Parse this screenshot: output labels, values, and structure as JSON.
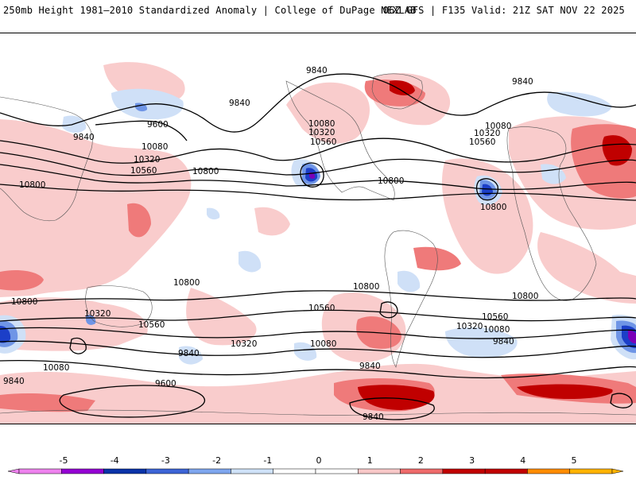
{
  "header": {
    "title": "250mb Height 1981–2010 Standardized Anomaly | College of DuPage NEXLAB",
    "run_info": "06Z GFS | F135 Valid: 21Z SAT NOV 22 2025"
  },
  "colors": {
    "pos1": "#f9cccc",
    "pos2": "#ef7a7a",
    "pos3": "#c00000",
    "neg1": "#cfe0f7",
    "neg2": "#6f95e6",
    "neg3": "#1c3fc8",
    "neg4": "#7a00b8",
    "neg5": "#e080ff"
  },
  "legend": {
    "ticks": [
      "-5",
      "-4",
      "-3",
      "-2",
      "-1",
      "0",
      "1",
      "2",
      "3",
      "4",
      "5"
    ],
    "bins": [
      "#ee82ee",
      "#9400d3",
      "#0a33a8",
      "#3c64d6",
      "#7ea6ee",
      "#cfe2f8",
      "#ffffff",
      "#ffffff",
      "#f8c8c8",
      "#ee6b6b",
      "#c00000",
      "#c00000",
      "#ff8c00",
      "#ffb300"
    ]
  },
  "contour_labels": [
    {
      "id": "c9840-north-pacific",
      "text": "9840"
    },
    {
      "id": "c9840-west",
      "text": "9840"
    },
    {
      "id": "c9840-northeast",
      "text": "9840"
    },
    {
      "id": "c9840-hudson",
      "text": "9840"
    },
    {
      "id": "c9600-north",
      "text": "9600"
    },
    {
      "id": "c10080-west",
      "text": "10080"
    },
    {
      "id": "c10080-north-america",
      "text": "10080"
    },
    {
      "id": "c10080-atlantic",
      "text": "10080"
    },
    {
      "id": "c10320-west",
      "text": "10320"
    },
    {
      "id": "c10320-north-america",
      "text": "10320"
    },
    {
      "id": "c10320-atlantic",
      "text": "10320"
    },
    {
      "id": "c10560-west",
      "text": "10560"
    },
    {
      "id": "c10560-north-america",
      "text": "10560"
    },
    {
      "id": "c10560-atlantic",
      "text": "10560"
    },
    {
      "id": "c10800-asia",
      "text": "10800"
    },
    {
      "id": "c10800-pacific",
      "text": "10800"
    },
    {
      "id": "c10800-gulf",
      "text": "10800"
    },
    {
      "id": "c10800-atlantic-low",
      "text": "10800"
    },
    {
      "id": "c10800-south-pacific",
      "text": "10800"
    },
    {
      "id": "c10800-south-west",
      "text": "10800"
    },
    {
      "id": "c10800-south-central",
      "text": "10800"
    },
    {
      "id": "c10800-south-east",
      "text": "10800"
    },
    {
      "id": "c10560-south-west",
      "text": "10560"
    },
    {
      "id": "c10560-south-central",
      "text": "10560"
    },
    {
      "id": "c10560-south-east",
      "text": "10560"
    },
    {
      "id": "c10320-south-west",
      "text": "10320"
    },
    {
      "id": "c10320-south-central",
      "text": "10320"
    },
    {
      "id": "c10320-south-east",
      "text": "10320"
    },
    {
      "id": "c10080-south-west",
      "text": "10080"
    },
    {
      "id": "c10080-south-central",
      "text": "10080"
    },
    {
      "id": "c10080-south-east",
      "text": "10080"
    },
    {
      "id": "c9840-south-west",
      "text": "9840"
    },
    {
      "id": "c9840-south-central",
      "text": "9840"
    },
    {
      "id": "c9840-south-east",
      "text": "9840"
    },
    {
      "id": "c9840-south-bottom",
      "text": "9840"
    },
    {
      "id": "c9840-south-farwest",
      "text": "9840"
    },
    {
      "id": "c9600-south",
      "text": "9600"
    }
  ]
}
